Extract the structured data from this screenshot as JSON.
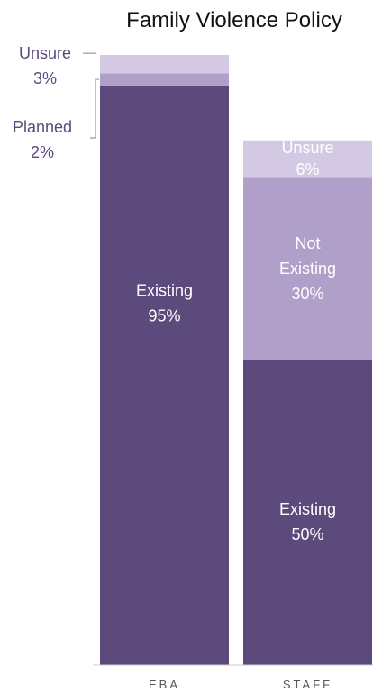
{
  "chart_data": {
    "type": "bar",
    "stacked": true,
    "normalized": true,
    "title": "Family Violence Policy",
    "categories": [
      "EBA",
      "STAFF"
    ],
    "ylim": [
      0,
      100
    ],
    "grid": false,
    "legend": "none",
    "series": [
      {
        "name": "Existing",
        "values": [
          95,
          50
        ],
        "color": "#5d4a7c"
      },
      {
        "name": "Planned",
        "values": [
          2,
          0
        ],
        "color": "#b0a0c9"
      },
      {
        "name": "Not Existing",
        "values": [
          0,
          30
        ],
        "color": "#b0a0c9"
      },
      {
        "name": "Unsure",
        "values": [
          3,
          6
        ],
        "color": "#d3c9e2"
      }
    ],
    "labels": {
      "eba_existing": [
        "Existing",
        "95%"
      ],
      "staff_existing": [
        "Existing",
        "50%"
      ],
      "staff_not_existing": [
        "Not",
        "Existing",
        "30%"
      ],
      "staff_unsure": [
        "Unsure",
        "6%"
      ],
      "eba_unsure": [
        "Unsure",
        "3%"
      ],
      "eba_planned": [
        "Planned",
        "2%"
      ]
    }
  }
}
